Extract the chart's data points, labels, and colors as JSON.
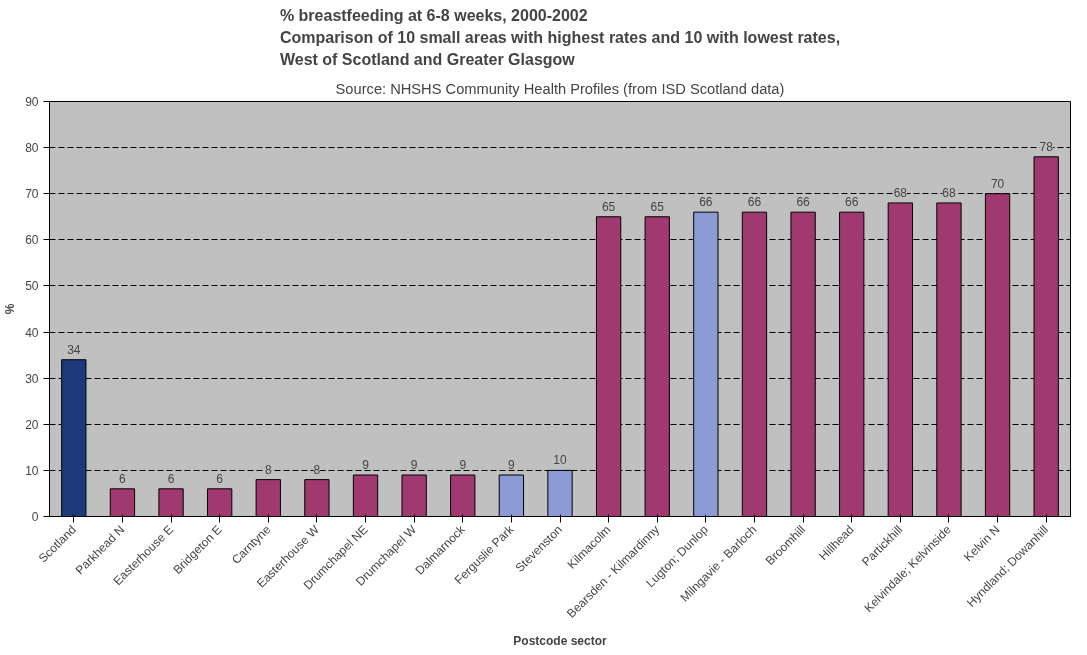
{
  "chart_data": {
    "type": "bar",
    "title": "% breastfeeding at 6-8 weeks, 2000-2002\nComparison of 10 small areas with highest rates and 10 with lowest rates,\nWest of Scotland and Greater Glasgow",
    "annotations": [
      "Source: NHSHS Community Health Profiles (from ISD Scotland data)"
    ],
    "xlabel": "Postcode sector",
    "ylabel": "%",
    "categories": [
      "Scotland",
      "Parkhead N",
      "Easterhouse E",
      "Bridgeton E",
      "Carntyne",
      "Easterhouse W",
      "Drumchapel NE",
      "Drumchapel W",
      "Dalmarnock",
      "Ferguslie Park",
      "Stevenston",
      "Kilmacolm",
      "Bearsden - Kilmardinny",
      "Lugton; Dunlop",
      "Milngavie - Barloch",
      "Broomhill",
      "Hillhead",
      "Partickhill",
      "Kelvindale; Kelvinside",
      "Kelvin N",
      "Hyndland; Dowanhill"
    ],
    "values": [
      34,
      6,
      6,
      6,
      8,
      8,
      9,
      9,
      9,
      9,
      10,
      65,
      65,
      66,
      66,
      66,
      66,
      68,
      68,
      70,
      78
    ],
    "colors": [
      "#1f3a7a",
      "#a0396f",
      "#a0396f",
      "#a0396f",
      "#a0396f",
      "#a0396f",
      "#a0396f",
      "#a0396f",
      "#a0396f",
      "#8c9bd6",
      "#8c9bd6",
      "#a0396f",
      "#a0396f",
      "#8c9bd6",
      "#a0396f",
      "#a0396f",
      "#a0396f",
      "#a0396f",
      "#a0396f",
      "#a0396f",
      "#a0396f"
    ],
    "ylim": [
      0,
      90
    ],
    "yticks": [
      0,
      10,
      20,
      30,
      40,
      50,
      60,
      70,
      80,
      90
    ],
    "grid": "y",
    "data_labels": true
  }
}
